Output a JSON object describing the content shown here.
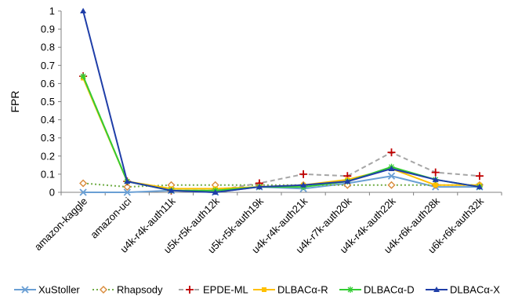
{
  "chart_data": {
    "type": "line",
    "ylabel": "FPR",
    "ylim": [
      0,
      1
    ],
    "yticks": [
      0,
      0.1,
      0.2,
      0.3,
      0.4,
      0.5,
      0.6,
      0.7,
      0.8,
      0.9,
      1
    ],
    "yticks_labels": [
      "0",
      "0.1",
      "0.2",
      "0.3",
      "0.4",
      "0.5",
      "0.6",
      "0.7",
      "0.8",
      "0.9",
      "1"
    ],
    "grid": false,
    "legend": "bottom",
    "categories": [
      "amazon-kaggle",
      "amazon-uci",
      "u4k-r4k-auth11k",
      "u5k-r5k-auth12k",
      "u5k-r5k-auth19k",
      "u4k-r4k-auth21k",
      "u4k-r7k-auth20k",
      "u4k-r4k-auth22k",
      "u4k-r6k-auth28k",
      "u6k-r6k-auth32k"
    ],
    "series": [
      {
        "name": "XuStoller",
        "color": "#6a9fd4",
        "dash": "solid",
        "marker": "x",
        "values": [
          0.0,
          0.0,
          0.01,
          0.0,
          0.03,
          0.02,
          0.05,
          0.09,
          0.03,
          0.03
        ]
      },
      {
        "name": "Rhapsody",
        "color": "#d98b3a",
        "dash": "dotted",
        "line_color": "#70ad47",
        "marker": "diamond",
        "values": [
          0.05,
          0.03,
          0.04,
          0.04,
          0.04,
          0.04,
          0.04,
          0.04,
          0.04,
          0.04
        ]
      },
      {
        "name": "EPDE-ML",
        "color": "#c00000",
        "dash": "dashed",
        "line_color": "#a6a6a6",
        "marker": "plus",
        "values": [
          0.64,
          0.06,
          0.01,
          0.01,
          0.05,
          0.1,
          0.09,
          0.22,
          0.11,
          0.09
        ]
      },
      {
        "name": "DLBACα-R",
        "color": "#ffc000",
        "dash": "solid",
        "marker": "square",
        "values": [
          0.63,
          0.06,
          0.02,
          0.02,
          0.03,
          0.04,
          0.07,
          0.13,
          0.04,
          0.04
        ]
      },
      {
        "name": "DLBACα-D",
        "color": "#33cc33",
        "dash": "solid",
        "marker": "star",
        "values": [
          0.64,
          0.06,
          0.01,
          0.01,
          0.03,
          0.03,
          0.06,
          0.14,
          0.07,
          0.03
        ]
      },
      {
        "name": "DLBACα-X",
        "color": "#1f3ea8",
        "dash": "solid",
        "marker": "triangle",
        "values": [
          1.0,
          0.06,
          0.01,
          0.0,
          0.03,
          0.04,
          0.06,
          0.13,
          0.07,
          0.03
        ]
      }
    ]
  }
}
